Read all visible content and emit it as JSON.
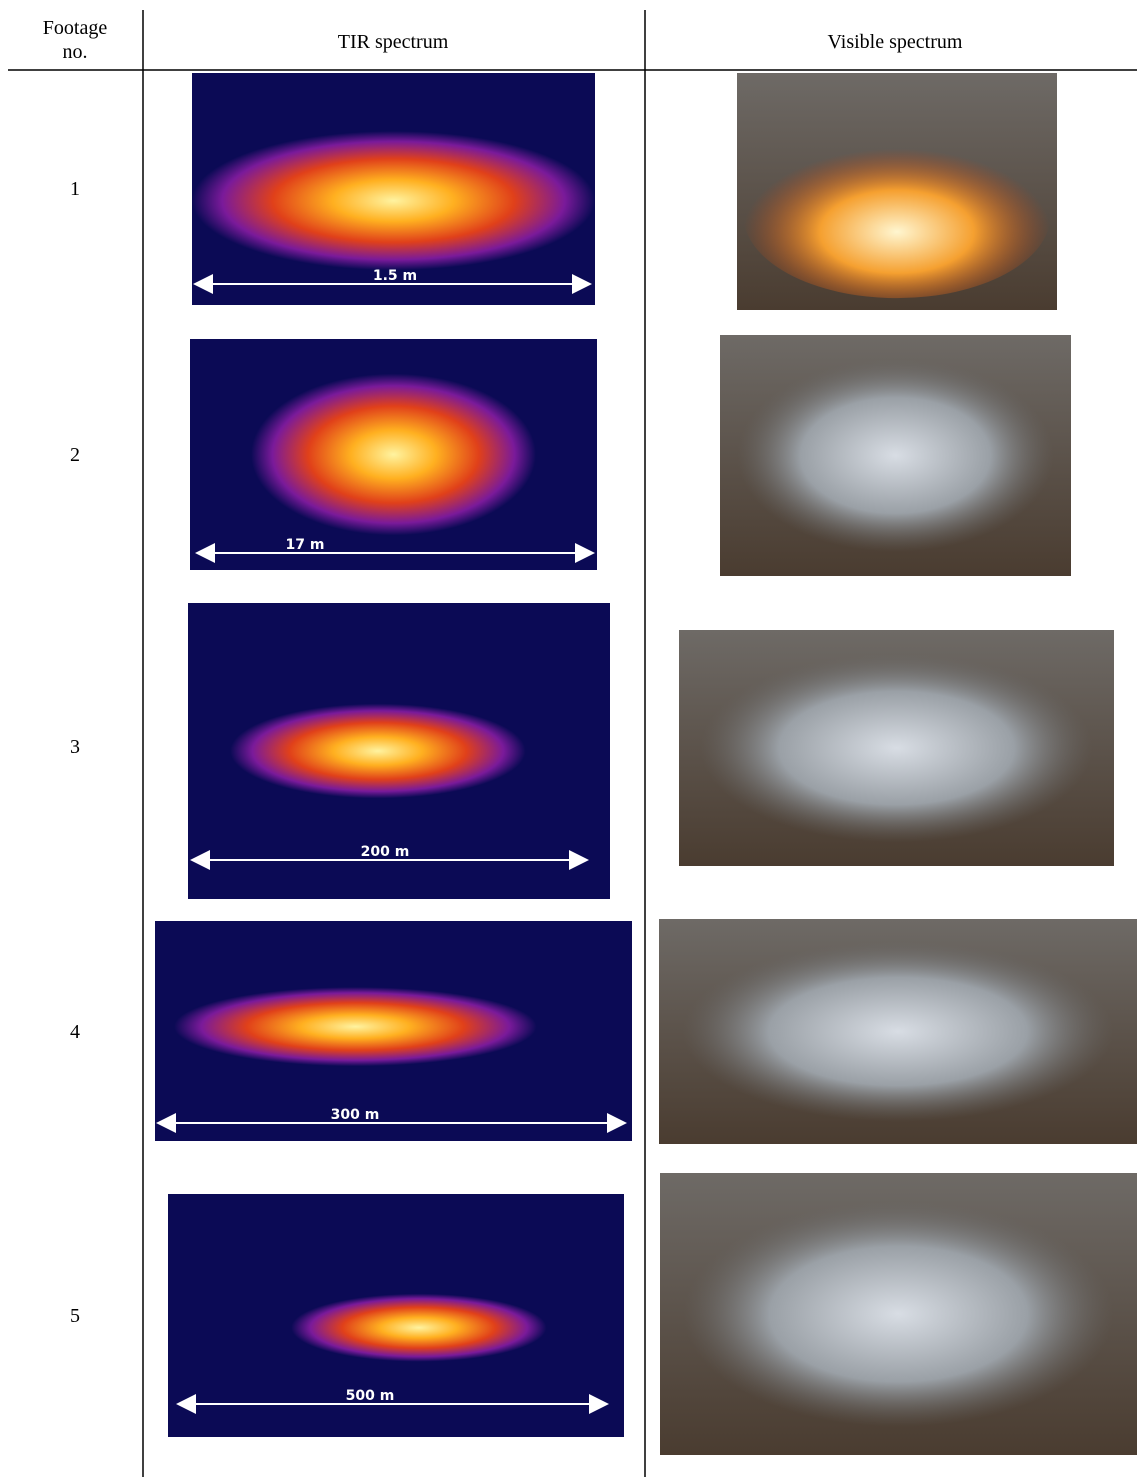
{
  "table": {
    "headers": [
      "Footage no.",
      "TIR spectrum",
      "Visible spectrum"
    ],
    "rows": [
      {
        "no": "1",
        "scale": "1.5 m"
      },
      {
        "no": "2",
        "scale": "17 m"
      },
      {
        "no": "3",
        "scale": "200 m"
      },
      {
        "no": "4",
        "scale": "300 m"
      },
      {
        "no": "5",
        "scale": "500 m"
      }
    ]
  }
}
